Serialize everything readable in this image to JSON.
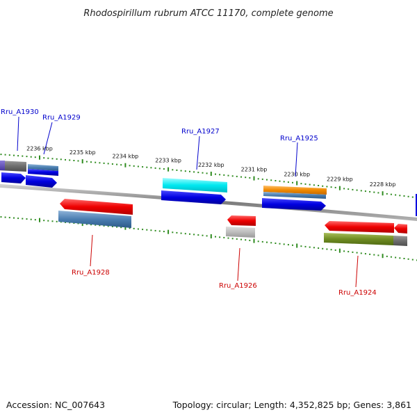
{
  "title": "Rhodospirillum rubrum ATCC 11170, complete genome",
  "accession": "Accession: NC_007643",
  "summary": "Topology: circular; Length: 4,352,825 bp; Genes: 3,861",
  "colors": {
    "backbone": "#8a8a8a",
    "tick": "#2e8b1f",
    "forward_label": "#0000cc",
    "reverse_label": "#cc0000"
  },
  "ticks": {
    "kbp_labels": [
      "2236 kbp",
      "2235 kbp",
      "2234 kbp",
      "2233 kbp",
      "2232 kbp",
      "2231 kbp",
      "2230 kbp",
      "2229 kbp",
      "2228 kbp"
    ]
  },
  "genes": {
    "forward": [
      {
        "label": "Rru_A1930"
      },
      {
        "label": "Rru_A1929"
      },
      {
        "label": "Rru_A1927"
      },
      {
        "label": "Rru_A1925"
      }
    ],
    "reverse": [
      {
        "label": "Rru_A1928"
      },
      {
        "label": "Rru_A1926"
      },
      {
        "label": "Rru_A1924"
      }
    ]
  }
}
